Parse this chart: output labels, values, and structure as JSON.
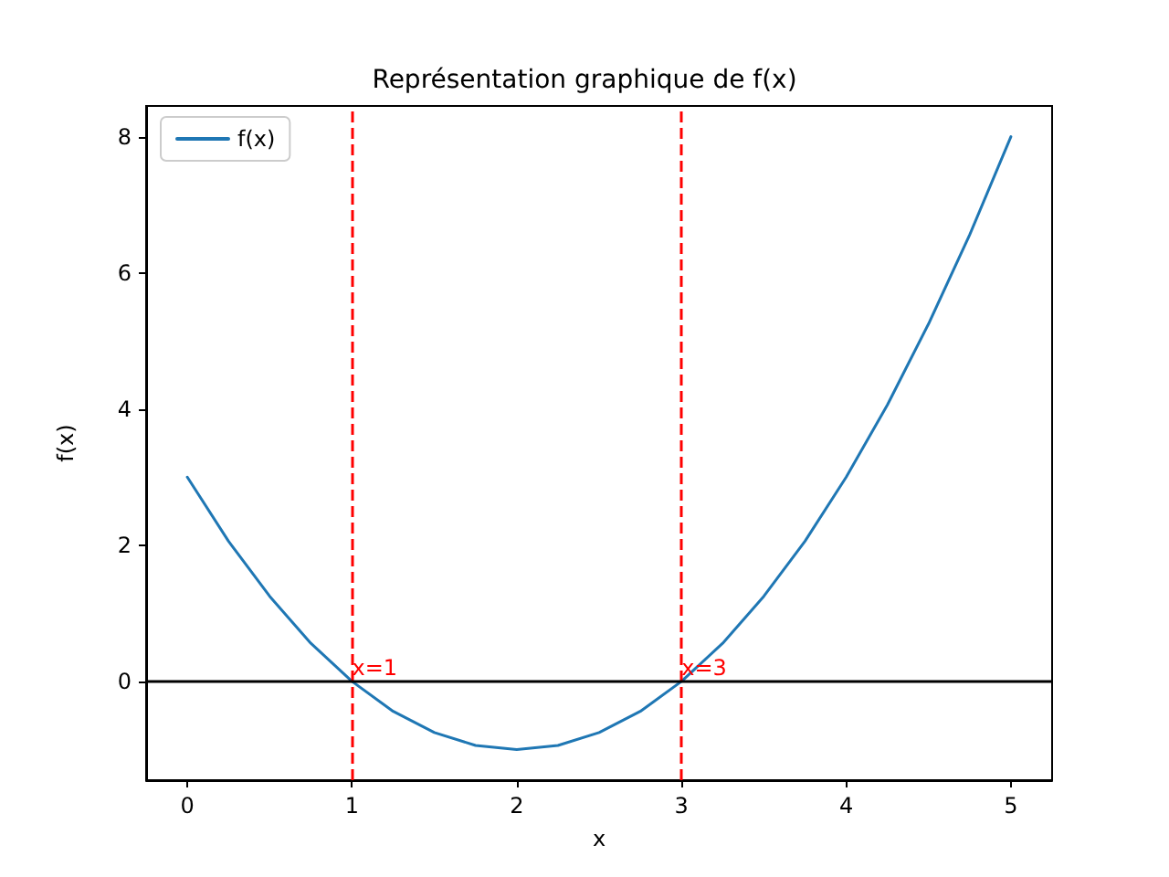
{
  "chart_data": {
    "type": "line",
    "title": "Représentation graphique de f(x)",
    "xlabel": "x",
    "ylabel": "f(x)",
    "x": [
      0,
      0.25,
      0.5,
      0.75,
      1,
      1.25,
      1.5,
      1.75,
      2,
      2.25,
      2.5,
      2.75,
      3,
      3.25,
      3.5,
      3.75,
      4,
      4.25,
      4.5,
      4.75,
      5
    ],
    "series": [
      {
        "name": "f(x)",
        "color": "#1f77b4",
        "values": [
          3,
          2.06,
          1.25,
          0.56,
          0,
          -0.44,
          -0.75,
          -0.94,
          -1,
          -0.94,
          -0.75,
          -0.44,
          0,
          0.56,
          1.25,
          2.06,
          3,
          4.06,
          5.25,
          6.56,
          8
        ]
      }
    ],
    "xlim": [
      -0.25,
      5.25
    ],
    "xticks": [
      0,
      1,
      2,
      3,
      4,
      5
    ],
    "ylim": [
      -1.45,
      8.45
    ],
    "yticks": [
      0,
      2,
      4,
      6,
      8
    ],
    "ref_lines": [
      {
        "axis": "x",
        "value": 1,
        "color": "#ff0000",
        "line_style": "dashed"
      },
      {
        "axis": "x",
        "value": 3,
        "color": "#ff0000",
        "line_style": "dashed"
      },
      {
        "axis": "y",
        "value": 0,
        "color": "#000000",
        "line_style": "solid"
      }
    ],
    "annotations": [
      {
        "text": "x=1",
        "x": 1,
        "y": 0.2
      },
      {
        "text": "x=3",
        "x": 3,
        "y": 0.2
      }
    ],
    "grid": false,
    "legend": "top left",
    "marker": "none",
    "line_style": "solid"
  }
}
